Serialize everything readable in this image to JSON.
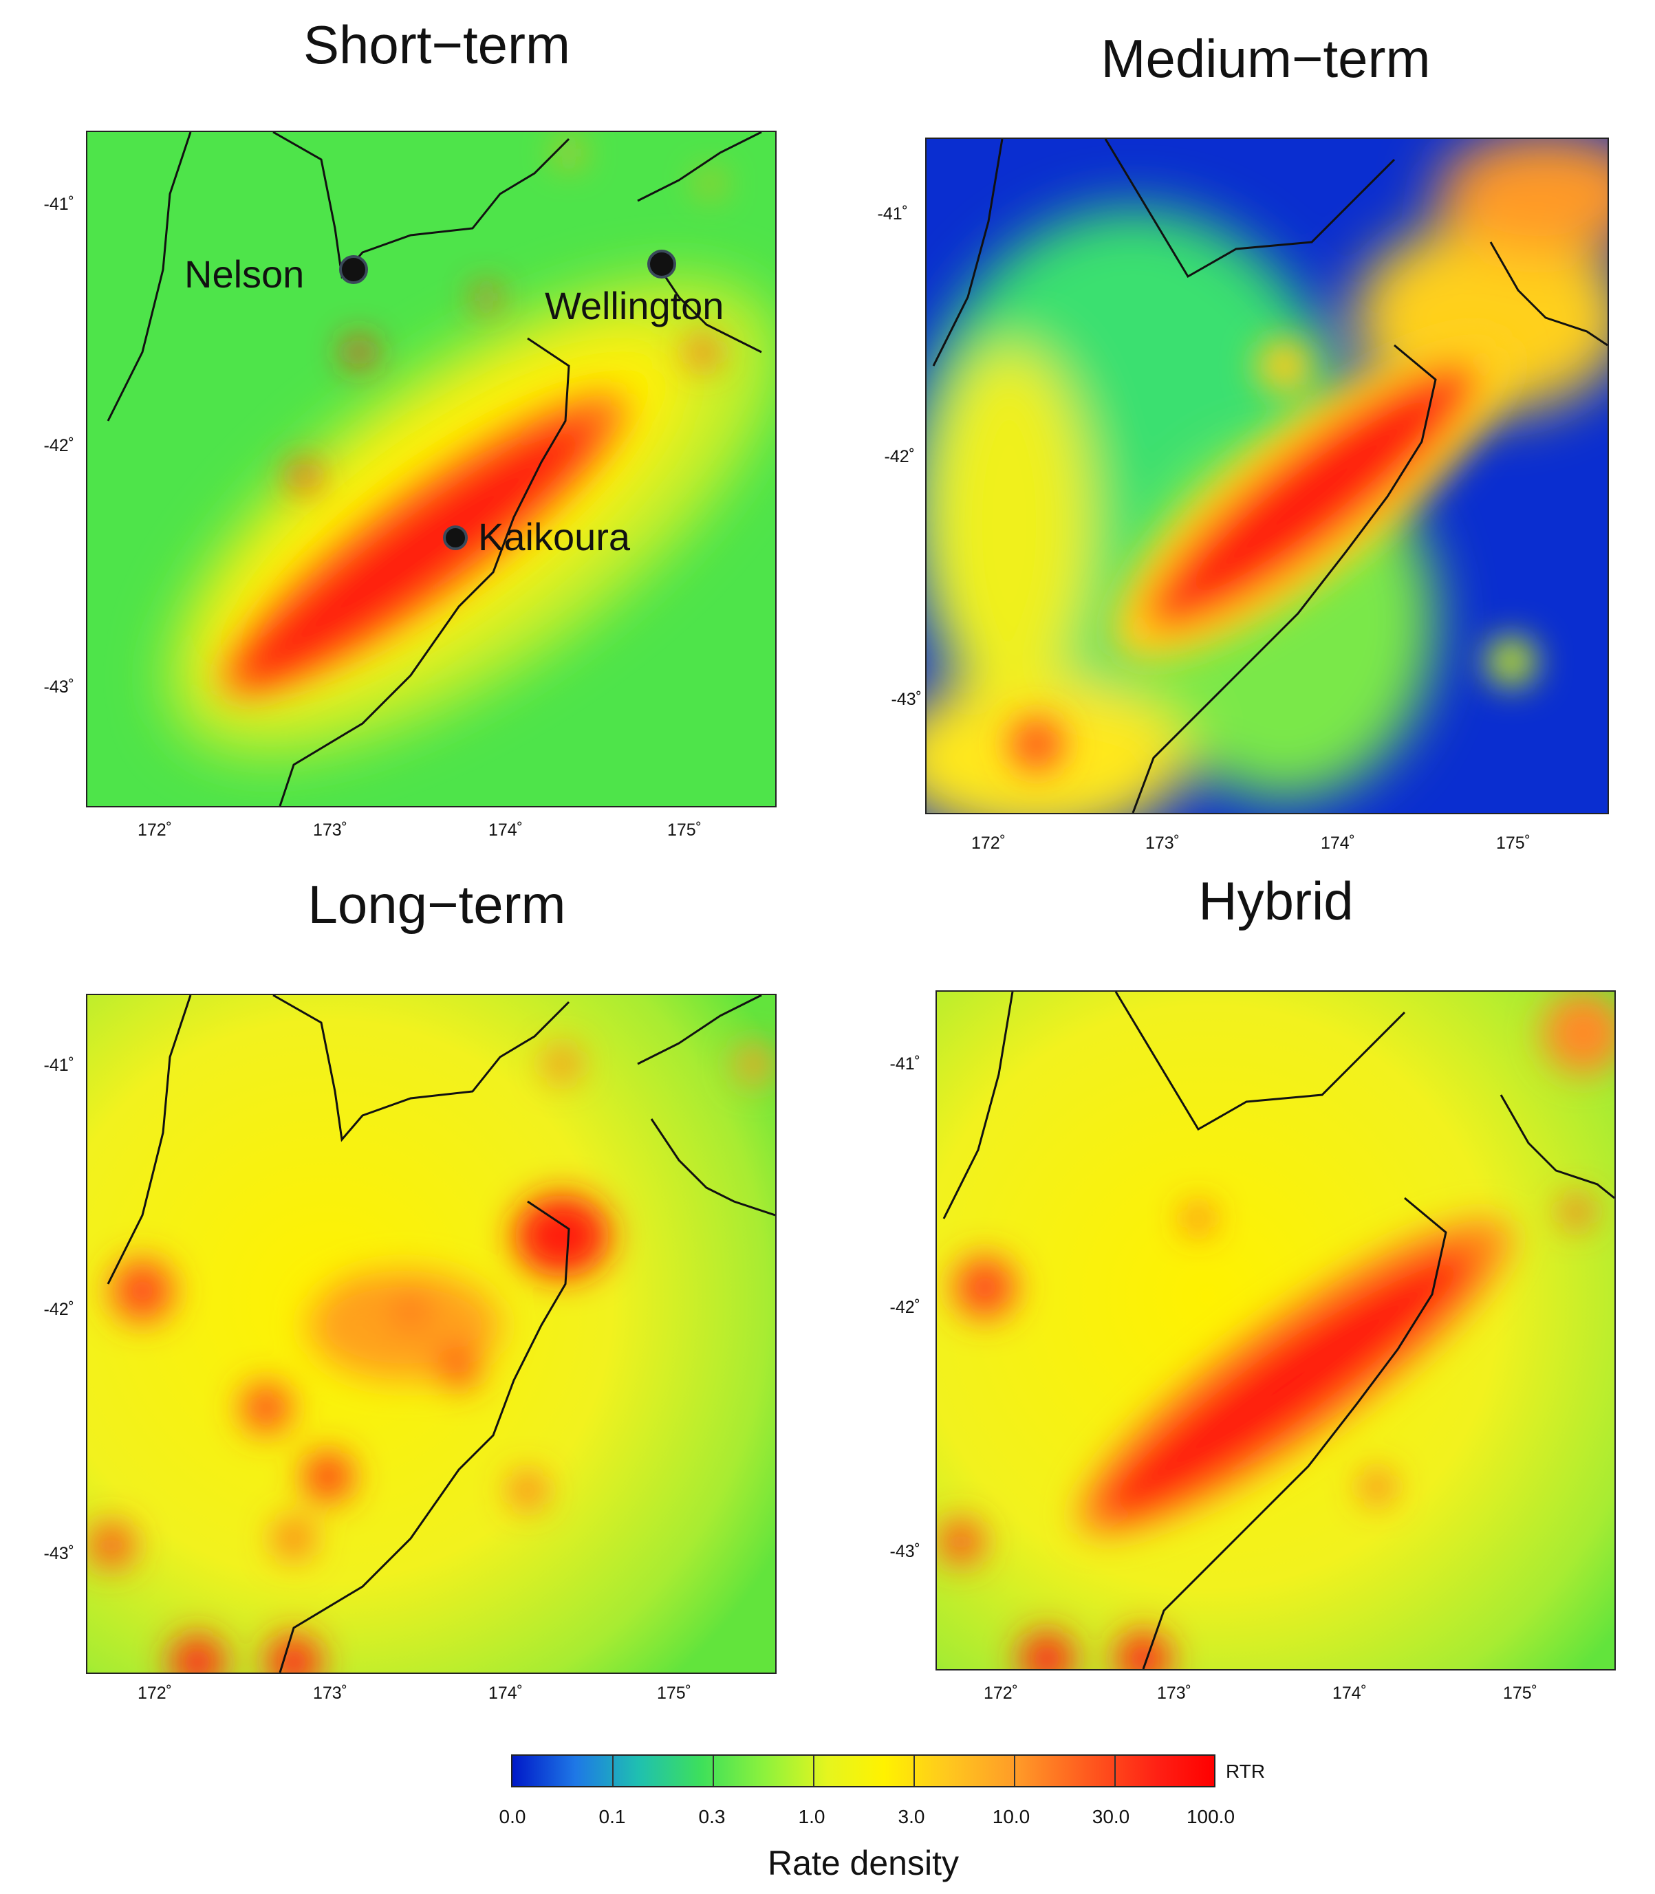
{
  "panels": [
    {
      "title": "Short−term",
      "latitudes": [
        "-41˚",
        "-42˚",
        "-43˚"
      ],
      "longitudes": [
        "172˚",
        "173˚",
        "174˚",
        "175˚"
      ]
    },
    {
      "title": "Medium−term",
      "latitudes": [
        "-41˚",
        "-42˚",
        "-43˚"
      ],
      "longitudes": [
        "172˚",
        "173˚",
        "174˚",
        "175˚"
      ]
    },
    {
      "title": "Long−term",
      "latitudes": [
        "-41˚",
        "-42˚",
        "-43˚"
      ],
      "longitudes": [
        "172˚",
        "173˚",
        "174˚",
        "175˚"
      ]
    },
    {
      "title": "Hybrid",
      "latitudes": [
        "-41˚",
        "-42˚",
        "-43˚"
      ],
      "longitudes": [
        "172˚",
        "173˚",
        "174˚",
        "175˚"
      ]
    }
  ],
  "places": {
    "nelson": "Nelson",
    "wellington": "Wellington",
    "kaikoura": "Kaikoura"
  },
  "colorbar": {
    "title": "Rate density",
    "unit": "RTR",
    "ticks": [
      "0.0",
      "0.1",
      "0.3",
      "1.0",
      "3.0",
      "10.0",
      "30.0",
      "100.0"
    ],
    "colors": [
      "#0019c8",
      "#1e78e6",
      "#1fc0b0",
      "#3ee05a",
      "#8ef23c",
      "#e6f51e",
      "#fff200",
      "#ffc81e",
      "#ff9a28",
      "#ff5a1e",
      "#ff2014",
      "#ff0000"
    ]
  }
}
